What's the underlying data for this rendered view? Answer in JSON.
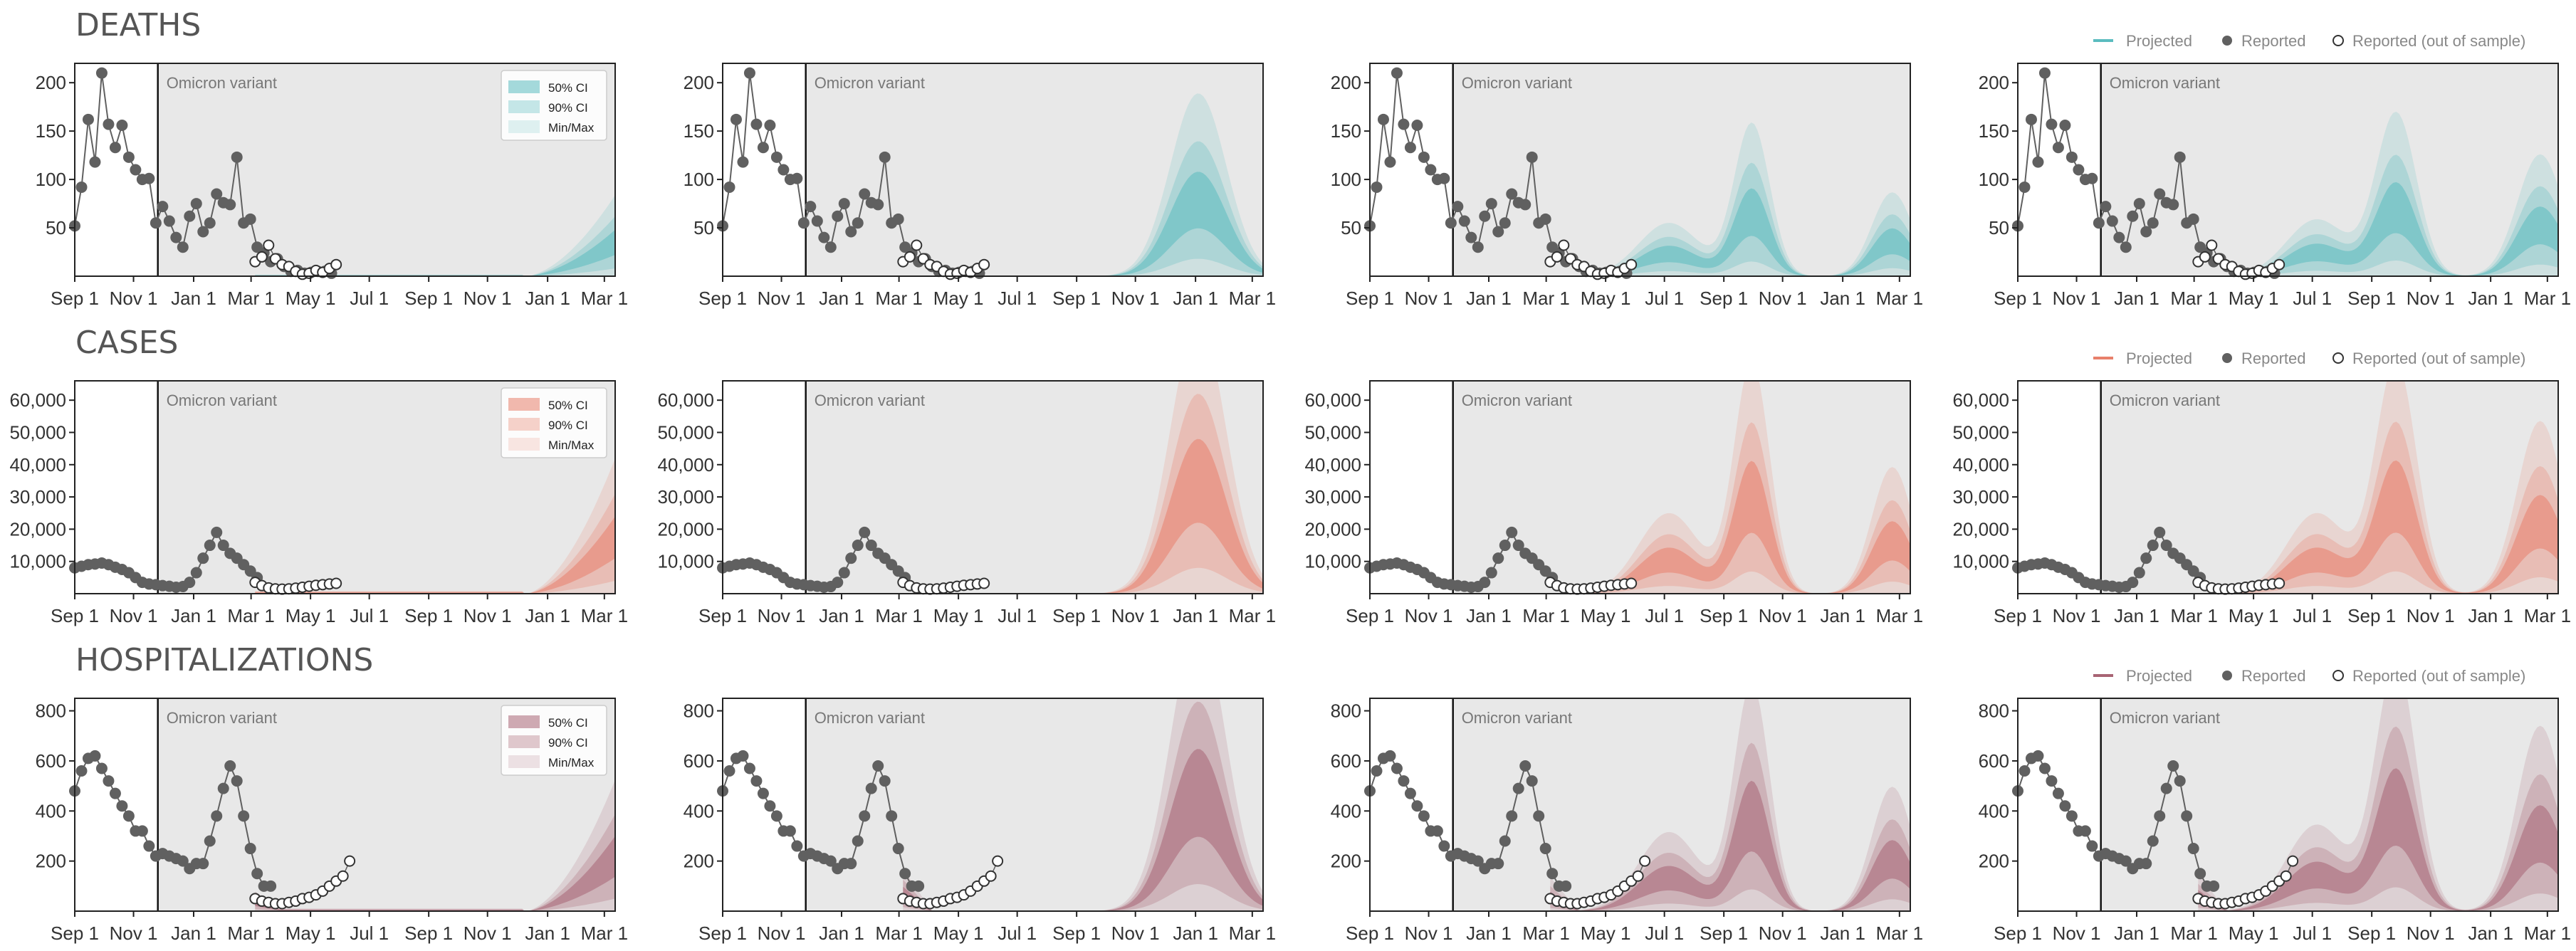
{
  "colors": {
    "panel_bg": "#e8e8e8",
    "reported": "#606060",
    "deaths": "#5bbcbf",
    "cases": "#e8806b",
    "hospitalizations": "#a86474"
  },
  "legend_labels": {
    "projected": "Projected",
    "reported": "Reported",
    "out_of_sample": "Reported (out of sample)",
    "ci50": "50% CI",
    "ci90": "90% CI",
    "minmax": "Min/Max"
  },
  "sections": [
    {
      "title": "DEATHS",
      "color_key": "deaths"
    },
    {
      "title": "CASES",
      "color_key": "cases"
    },
    {
      "title": "HOSPITALIZATIONS",
      "color_key": "hospitalizations"
    }
  ],
  "chart_data": {
    "type": "line",
    "annotation": "Omicron variant",
    "x_ticks": [
      "Sep 1",
      "Nov 1",
      "Jan 1",
      "Mar 1",
      "May 1",
      "Jul 1",
      "Sep 1",
      "Nov 1",
      "Jan 1",
      "Mar 1"
    ],
    "x_tick_weeks": [
      0,
      8.7,
      17.6,
      26.1,
      34.9,
      43.6,
      52.4,
      61.1,
      70,
      78.4
    ],
    "x_range_weeks": [
      0,
      80
    ],
    "omicron_week": 12.3,
    "out_of_sample_start_week": 26.7,
    "rows": [
      {
        "name": "deaths",
        "ylim": [
          0,
          220
        ],
        "y_ticks": [
          50,
          100,
          150,
          200
        ],
        "y_tick_labels": [
          "50",
          "100",
          "150",
          "200"
        ],
        "reported": [
          52,
          92,
          162,
          118,
          210,
          157,
          133,
          156,
          123,
          110,
          100,
          101,
          55,
          72,
          57,
          40,
          30,
          62,
          75,
          46,
          55,
          85,
          76,
          74,
          123,
          55,
          59,
          30,
          24,
          15,
          18,
          10,
          5,
          6,
          3,
          4,
          5,
          5,
          3
        ],
        "out_of_sample": [
          15,
          20,
          32,
          18,
          12,
          10,
          5,
          2,
          3,
          6,
          4,
          8,
          12
        ]
      },
      {
        "name": "cases",
        "ylim": [
          0,
          66000
        ],
        "y_ticks": [
          10000,
          20000,
          30000,
          40000,
          50000,
          60000
        ],
        "y_tick_labels": [
          "10,000",
          "20,000",
          "30,000",
          "40,000",
          "50,000",
          "60,000"
        ],
        "reported": [
          8000,
          8500,
          9000,
          9200,
          9500,
          9000,
          8200,
          7500,
          6500,
          5000,
          3500,
          3000,
          2800,
          2500,
          2300,
          2000,
          2200,
          3500,
          6500,
          11000,
          15000,
          19000,
          15000,
          12500,
          11000,
          9000,
          7000,
          5000
        ],
        "out_of_sample": [
          3500,
          2500,
          1800,
          1500,
          1400,
          1500,
          1700,
          2000,
          2300,
          2600,
          2800,
          3000,
          3200
        ]
      },
      {
        "name": "hospitalizations",
        "ylim": [
          0,
          850
        ],
        "y_ticks": [
          200,
          400,
          600,
          800
        ],
        "y_tick_labels": [
          "200",
          "400",
          "600",
          "800"
        ],
        "reported": [
          480,
          560,
          610,
          620,
          570,
          520,
          470,
          420,
          380,
          320,
          320,
          260,
          220,
          230,
          220,
          210,
          200,
          170,
          190,
          190,
          280,
          380,
          490,
          580,
          520,
          380,
          250,
          150,
          100,
          100
        ],
        "out_of_sample": [
          50,
          40,
          35,
          30,
          30,
          35,
          40,
          50,
          55,
          65,
          80,
          100,
          120,
          140,
          200
        ]
      }
    ],
    "panel_projection_peaks": [
      {
        "deaths": 40,
        "cases": 20000,
        "hospitalizations": 250
      },
      {
        "deaths": 90,
        "cases": 40000,
        "hospitalizations": 540
      },
      {
        "deaths": 75,
        "cases": 34000,
        "hospitalizations": 430
      },
      {
        "deaths": 80,
        "cases": 34000,
        "hospitalizations": 470
      }
    ]
  }
}
